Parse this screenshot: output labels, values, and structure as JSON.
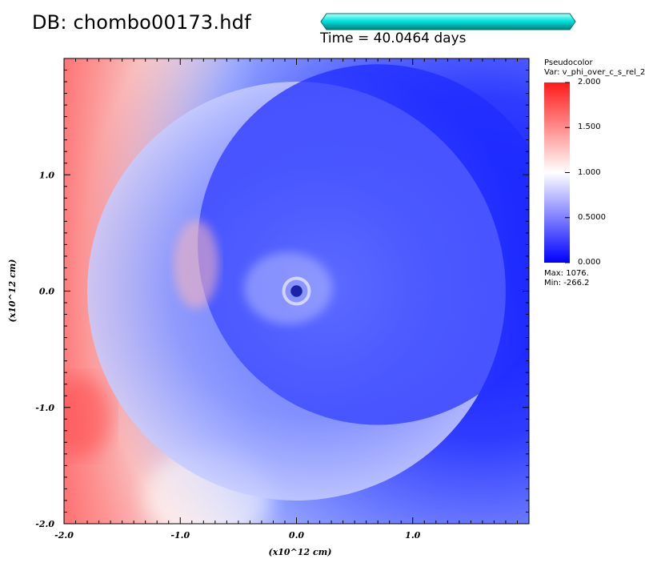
{
  "header": {
    "db_label": "DB: chombo00173.hdf",
    "time_label": "Time = 40.0464 days",
    "time_fraction": 1.0
  },
  "colors": {
    "red": "#ff1a1a",
    "white": "#ffffff",
    "blue": "#0000ff",
    "time_bar": "#00e5e0"
  },
  "chart_data": {
    "type": "heatmap",
    "title": "Pseudocolor",
    "variable": "Var: v_phi_over_c_s_rel_2",
    "xlabel": "(x10^12  cm)",
    "ylabel": "(x10^12  cm)",
    "xlim": [
      -2.0,
      2.0
    ],
    "ylim": [
      -2.0,
      2.0
    ],
    "x_ticks": [
      -2.0,
      -1.0,
      0.0,
      1.0
    ],
    "x_tick_labels": [
      "-2.0",
      "-1.0",
      "0.0",
      "1.0"
    ],
    "y_ticks": [
      -2.0,
      -1.0,
      0.0,
      1.0
    ],
    "y_tick_labels": [
      "-2.0",
      "-1.0",
      "0.0",
      "1.0"
    ],
    "colorbar": {
      "min": 0.0,
      "max": 2.0,
      "ticks": [
        2.0,
        1.5,
        1.0,
        0.5,
        0.0
      ],
      "tick_labels": [
        "2.000",
        "1.500",
        "1.000",
        "0.5000",
        "0.000"
      ]
    },
    "data_max_label": "Max:  1076.",
    "data_min_label": "Min: -266.2",
    "features": {
      "outer_shell": {
        "center": [
          0.0,
          0.0
        ],
        "radius": 1.8
      },
      "inner_shell": {
        "center": [
          0.7,
          0.4
        ],
        "radius": 1.55
      },
      "core": {
        "center": [
          0.0,
          0.0
        ],
        "radius": 0.05
      }
    }
  }
}
